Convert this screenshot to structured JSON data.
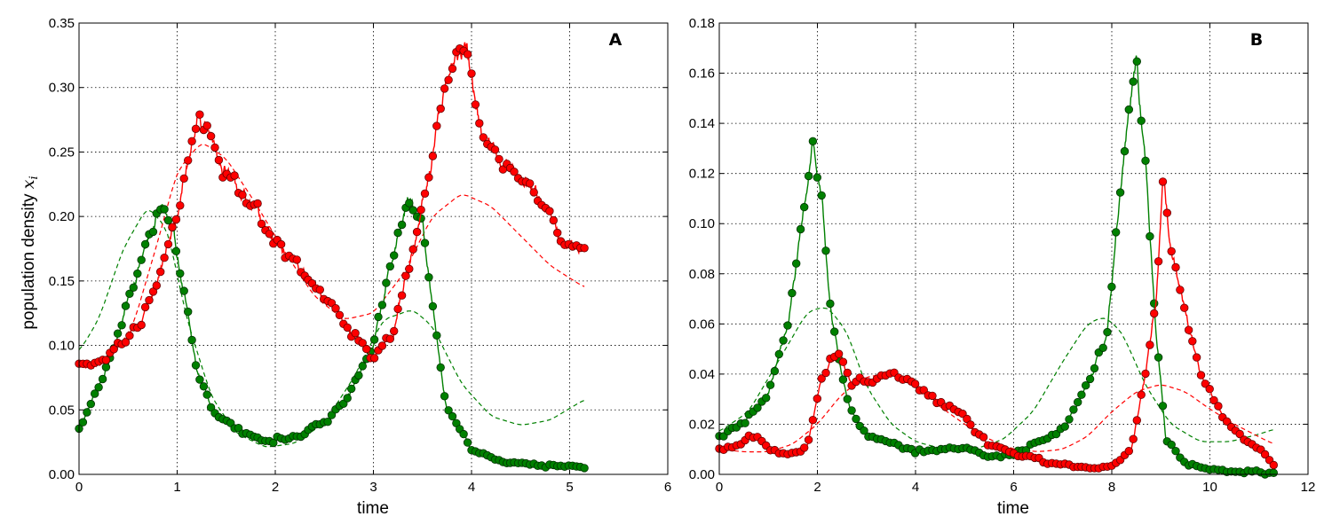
{
  "chart_data": [
    {
      "type": "line",
      "panel_label": "A",
      "xlabel": "time",
      "ylabel": "population density",
      "ylabel_symbol": "x",
      "ylabel_subscript": "i",
      "xlim": [
        0,
        6
      ],
      "ylim": [
        0,
        0.35
      ],
      "x_ticks": [
        "0",
        "1",
        "2",
        "3",
        "4",
        "5",
        "6"
      ],
      "y_ticks": [
        "0.00",
        "0.05",
        "0.10",
        "0.15",
        "0.20",
        "0.25",
        "0.30",
        "0.35"
      ],
      "grid": true,
      "series": [
        {
          "kind": "noisy-markers",
          "color": "#008000",
          "marker_edge": "#003300",
          "x": [
            0,
            0.3,
            0.6,
            0.85,
            1.0,
            1.2,
            1.4,
            1.7,
            1.9,
            2.2,
            2.5,
            2.8,
            3.0,
            3.2,
            3.35,
            3.5,
            3.6,
            3.75,
            4.0,
            4.3,
            4.7,
            5.15
          ],
          "y": [
            0.035,
            0.085,
            0.16,
            0.21,
            0.17,
            0.08,
            0.045,
            0.032,
            0.027,
            0.028,
            0.04,
            0.068,
            0.1,
            0.17,
            0.21,
            0.2,
            0.13,
            0.05,
            0.02,
            0.01,
            0.007,
            0.006
          ]
        },
        {
          "kind": "noisy-markers",
          "color": "#ff0000",
          "marker_edge": "#660000",
          "x": [
            0,
            0.2,
            0.5,
            0.75,
            1.0,
            1.2,
            1.35,
            1.6,
            2.0,
            2.4,
            2.8,
            3.0,
            3.2,
            3.5,
            3.8,
            3.95,
            4.1,
            4.4,
            4.7,
            4.9,
            5.15
          ],
          "y": [
            0.085,
            0.085,
            0.105,
            0.14,
            0.2,
            0.28,
            0.26,
            0.22,
            0.18,
            0.145,
            0.11,
            0.09,
            0.11,
            0.21,
            0.32,
            0.33,
            0.26,
            0.24,
            0.22,
            0.18,
            0.175
          ]
        },
        {
          "kind": "dashed",
          "color": "#008000",
          "x": [
            0,
            0.2,
            0.45,
            0.7,
            0.9,
            1.1,
            1.35,
            1.6,
            1.9,
            2.2,
            2.5,
            2.8,
            3.1,
            3.4,
            3.6,
            3.9,
            4.2,
            4.5,
            4.8,
            5.15
          ],
          "y": [
            0.095,
            0.12,
            0.175,
            0.208,
            0.19,
            0.12,
            0.06,
            0.032,
            0.021,
            0.024,
            0.04,
            0.075,
            0.12,
            0.128,
            0.115,
            0.07,
            0.045,
            0.038,
            0.042,
            0.058
          ]
        },
        {
          "kind": "dashed",
          "color": "#ff0000",
          "x": [
            0,
            0.3,
            0.55,
            0.8,
            1.0,
            1.25,
            1.5,
            1.8,
            2.1,
            2.4,
            2.7,
            3.0,
            3.3,
            3.6,
            3.9,
            4.2,
            4.5,
            4.8,
            5.15
          ],
          "y": [
            0.085,
            0.088,
            0.115,
            0.18,
            0.235,
            0.258,
            0.245,
            0.21,
            0.172,
            0.138,
            0.12,
            0.125,
            0.155,
            0.2,
            0.218,
            0.208,
            0.185,
            0.162,
            0.145
          ]
        }
      ]
    },
    {
      "type": "line",
      "panel_label": "B",
      "xlabel": "time",
      "xlim": [
        0,
        12
      ],
      "ylim": [
        0,
        0.18
      ],
      "x_ticks": [
        "0",
        "2",
        "4",
        "6",
        "8",
        "10",
        "12"
      ],
      "y_ticks": [
        "0.00",
        "0.02",
        "0.04",
        "0.06",
        "0.08",
        "0.10",
        "0.12",
        "0.14",
        "0.16",
        "0.18"
      ],
      "grid": true,
      "series": [
        {
          "kind": "noisy-markers",
          "color": "#008000",
          "marker_edge": "#003300",
          "x": [
            0,
            0.5,
            1.0,
            1.4,
            1.7,
            1.9,
            2.1,
            2.3,
            2.6,
            3.0,
            3.5,
            4.0,
            4.5,
            5.0,
            5.5,
            6.0,
            6.5,
            7.0,
            7.5,
            7.9,
            8.2,
            8.5,
            8.7,
            8.9,
            9.1,
            9.5,
            10.0,
            10.5,
            11.0,
            11.3
          ],
          "y": [
            0.015,
            0.02,
            0.032,
            0.06,
            0.1,
            0.135,
            0.105,
            0.06,
            0.03,
            0.015,
            0.013,
            0.009,
            0.01,
            0.01,
            0.007,
            0.008,
            0.013,
            0.018,
            0.035,
            0.055,
            0.12,
            0.17,
            0.12,
            0.06,
            0.015,
            0.004,
            0.002,
            0.001,
            0.001,
            0.001
          ]
        },
        {
          "kind": "noisy-markers",
          "color": "#ff0000",
          "marker_edge": "#660000",
          "x": [
            0,
            0.5,
            0.8,
            1.0,
            1.4,
            1.8,
            2.1,
            2.4,
            2.7,
            3.0,
            3.5,
            4.0,
            4.5,
            5.0,
            5.5,
            6.0,
            6.5,
            7.0,
            7.5,
            8.0,
            8.4,
            8.7,
            8.9,
            9.05,
            9.2,
            9.5,
            9.8,
            10.2,
            10.7,
            11.0,
            11.3
          ],
          "y": [
            0.01,
            0.013,
            0.015,
            0.01,
            0.008,
            0.012,
            0.04,
            0.05,
            0.036,
            0.037,
            0.04,
            0.036,
            0.028,
            0.023,
            0.012,
            0.008,
            0.006,
            0.004,
            0.003,
            0.003,
            0.01,
            0.04,
            0.07,
            0.12,
            0.09,
            0.065,
            0.04,
            0.025,
            0.014,
            0.01,
            0.004
          ]
        },
        {
          "kind": "dashed",
          "color": "#008000",
          "x": [
            0,
            0.6,
            1.2,
            1.8,
            2.2,
            2.6,
            3.0,
            3.5,
            4.0,
            4.6,
            5.2,
            5.8,
            6.4,
            7.0,
            7.5,
            7.85,
            8.2,
            8.7,
            9.2,
            9.8,
            10.4,
            11.0,
            11.3
          ],
          "y": [
            0.017,
            0.025,
            0.045,
            0.065,
            0.067,
            0.057,
            0.035,
            0.02,
            0.013,
            0.01,
            0.01,
            0.014,
            0.025,
            0.045,
            0.06,
            0.063,
            0.057,
            0.035,
            0.02,
            0.013,
            0.013,
            0.016,
            0.018
          ]
        },
        {
          "kind": "dashed",
          "color": "#ff0000",
          "x": [
            0,
            0.5,
            1.0,
            1.5,
            2.0,
            2.5,
            3.0,
            3.5,
            4.0,
            4.5,
            5.0,
            5.5,
            6.0,
            6.5,
            7.0,
            7.5,
            8.0,
            8.5,
            9.0,
            9.5,
            10.0,
            10.5,
            11.0,
            11.3
          ],
          "y": [
            0.01,
            0.009,
            0.009,
            0.012,
            0.02,
            0.032,
            0.039,
            0.04,
            0.035,
            0.027,
            0.02,
            0.014,
            0.01,
            0.009,
            0.01,
            0.015,
            0.025,
            0.033,
            0.036,
            0.033,
            0.026,
            0.02,
            0.015,
            0.012
          ]
        }
      ]
    }
  ]
}
